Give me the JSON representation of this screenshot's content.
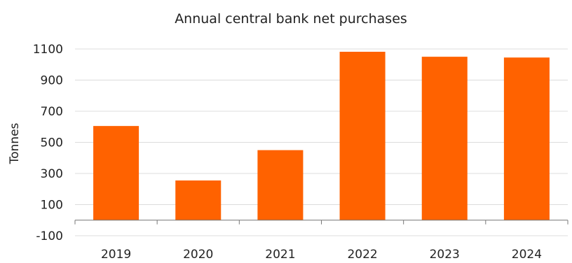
{
  "colors": {
    "bar": "#ff6200",
    "grid": "#dcdcdc",
    "axis": "#777777",
    "text": "#222222"
  },
  "chart_data": {
    "type": "bar",
    "title": "Annual central bank net purchases",
    "xlabel": "",
    "ylabel": "Tonnes",
    "categories": [
      "2019",
      "2020",
      "2021",
      "2022",
      "2023",
      "2024"
    ],
    "values": [
      605,
      255,
      450,
      1082,
      1050,
      1045
    ],
    "ylim": [
      -100,
      1100
    ],
    "yticks": [
      1100,
      900,
      700,
      500,
      300,
      100,
      -100
    ],
    "grid": true,
    "legend": "none"
  }
}
